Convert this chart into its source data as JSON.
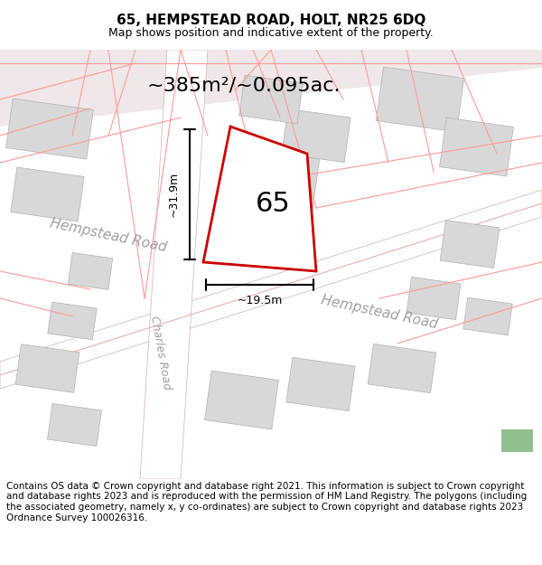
{
  "title": "65, HEMPSTEAD ROAD, HOLT, NR25 6DQ",
  "subtitle": "Map shows position and indicative extent of the property.",
  "area_label": "~385m²/~0.095ac.",
  "property_number": "65",
  "dim_height": "~31.9m",
  "dim_width": "~19.5m",
  "road_labels": [
    "Hempstead Road",
    "Hempstead Road",
    "Charles Road"
  ],
  "footer": "Contains OS data © Crown copyright and database right 2021. This information is subject to Crown copyright and database rights 2023 and is reproduced with the permission of HM Land Registry. The polygons (including the associated geometry, namely x, y co-ordinates) are subject to Crown copyright and database rights 2023 Ordnance Survey 100026316.",
  "bg_color": "#f5f0f0",
  "map_bg": "#f8f4f4",
  "plot_fill": "#ffffff",
  "plot_edge": "#cc0000",
  "road_fill": "#ffffff",
  "building_fill": "#d8d8d8",
  "building_edge": "#cccccc",
  "road_line_color": "#e8a0a0",
  "title_fontsize": 11,
  "subtitle_fontsize": 9,
  "footer_fontsize": 7.5
}
